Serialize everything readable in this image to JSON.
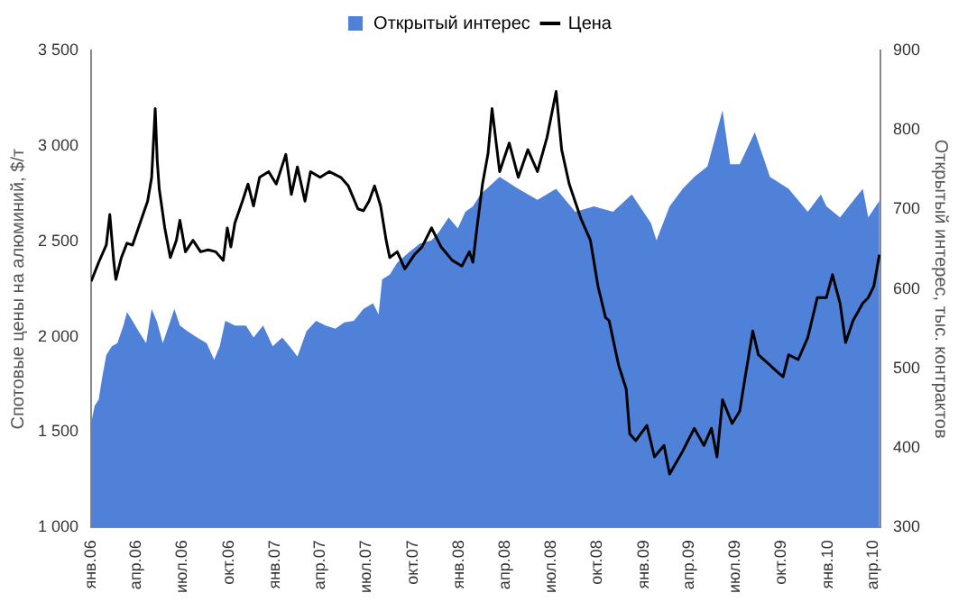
{
  "chart_data": {
    "type": "line",
    "ylabel": "Спотовые цены на алюминий, $/т",
    "y2label": "Открытый интерес, тыс. контрактов",
    "legend": "top",
    "grid": false,
    "marker": "none",
    "line_style": "solid",
    "xlim": [
      "2006-01-01",
      "2010-04-15"
    ],
    "xticks": [
      {
        "value": "2006-01-01",
        "label": "янв.06"
      },
      {
        "value": "2006-04-01",
        "label": "апр.06"
      },
      {
        "value": "2006-07-01",
        "label": "июл.06"
      },
      {
        "value": "2006-10-01",
        "label": "окт.06"
      },
      {
        "value": "2007-01-01",
        "label": "янв.07"
      },
      {
        "value": "2007-04-01",
        "label": "апр.07"
      },
      {
        "value": "2007-07-01",
        "label": "июл.07"
      },
      {
        "value": "2007-10-01",
        "label": "окт.07"
      },
      {
        "value": "2008-01-01",
        "label": "янв.08"
      },
      {
        "value": "2008-04-01",
        "label": "апр.08"
      },
      {
        "value": "2008-07-01",
        "label": "июл.08"
      },
      {
        "value": "2008-10-01",
        "label": "окт.08"
      },
      {
        "value": "2009-01-01",
        "label": "янв.09"
      },
      {
        "value": "2009-04-01",
        "label": "апр.09"
      },
      {
        "value": "2009-07-01",
        "label": "июл.09"
      },
      {
        "value": "2009-10-01",
        "label": "окт.09"
      },
      {
        "value": "2010-01-01",
        "label": "янв.10"
      },
      {
        "value": "2010-04-01",
        "label": "апр.10"
      }
    ],
    "ylim": [
      1000,
      3500
    ],
    "yticks": [
      {
        "value": 1000,
        "label": "1 000"
      },
      {
        "value": 1500,
        "label": "1 500"
      },
      {
        "value": 2000,
        "label": "2 000"
      },
      {
        "value": 2500,
        "label": "2 500"
      },
      {
        "value": 3000,
        "label": "3 000"
      },
      {
        "value": 3500,
        "label": "3 500"
      }
    ],
    "y2lim": [
      300,
      900
    ],
    "y2ticks": [
      300,
      400,
      500,
      600,
      700,
      800,
      900
    ],
    "series": [
      {
        "name": "Открытый интерес",
        "type": "area",
        "axis": "y2",
        "color": "#4f81d9",
        "x": [
          "2006-01-01",
          "2006-01-08",
          "2006-01-16",
          "2006-01-23",
          "2006-01-31",
          "2006-02-11",
          "2006-02-22",
          "2006-03-06",
          "2006-03-13",
          "2006-03-24",
          "2006-04-05",
          "2006-04-20",
          "2006-05-01",
          "2006-05-12",
          "2006-05-23",
          "2006-06-04",
          "2006-06-15",
          "2006-06-26",
          "2006-07-11",
          "2006-07-30",
          "2006-08-18",
          "2006-09-02",
          "2006-09-13",
          "2006-09-24",
          "2006-10-13",
          "2006-11-04",
          "2006-11-19",
          "2006-12-08",
          "2006-12-27",
          "2007-01-15",
          "2007-02-02",
          "2007-02-14",
          "2007-03-04",
          "2007-03-23",
          "2007-04-11",
          "2007-04-30",
          "2007-05-18",
          "2007-06-06",
          "2007-06-25",
          "2007-07-14",
          "2007-07-25",
          "2007-08-01",
          "2007-08-16",
          "2007-08-31",
          "2007-09-23",
          "2007-10-15",
          "2007-11-07",
          "2007-11-22",
          "2007-12-11",
          "2007-12-29",
          "2008-01-13",
          "2008-01-28",
          "2008-02-12",
          "2008-03-21",
          "2008-04-27",
          "2008-06-04",
          "2008-07-11",
          "2008-08-18",
          "2008-09-24",
          "2008-11-01",
          "2008-12-08",
          "2009-01-15",
          "2009-01-26",
          "2009-02-21",
          "2009-03-19",
          "2009-04-11",
          "2009-05-07",
          "2009-06-06",
          "2009-06-21",
          "2009-07-10",
          "2009-08-09",
          "2009-09-08",
          "2009-10-15",
          "2009-11-22",
          "2009-12-18",
          "2009-12-29",
          "2010-01-25",
          "2010-02-20",
          "2010-03-11",
          "2010-03-22",
          "2010-04-13"
        ],
        "values": [
          431,
          453,
          461,
          489,
          517,
          528,
          532,
          554,
          571,
          560,
          547,
          532,
          575,
          558,
          532,
          554,
          575,
          554,
          547,
          539,
          532,
          511,
          528,
          560,
          554,
          554,
          539,
          554,
          528,
          539,
          525,
          515,
          547,
          560,
          554,
          550,
          558,
          560,
          575,
          582,
          568,
          612,
          618,
          633,
          646,
          657,
          661,
          672,
          690,
          676,
          697,
          704,
          719,
          741,
          726,
          712,
          726,
          697,
          704,
          697,
          719,
          683,
          661,
          704,
          726,
          741,
          754,
          825,
          757,
          757,
          797,
          741,
          726,
          697,
          719,
          704,
          690,
          711,
          726,
          690,
          711
        ]
      },
      {
        "name": "Цена",
        "type": "line",
        "color": "#000000",
        "x": [
          "2006-01-01",
          "2006-01-16",
          "2006-01-31",
          "2006-02-07",
          "2006-02-15",
          "2006-02-19",
          "2006-03-02",
          "2006-03-13",
          "2006-03-24",
          "2006-04-08",
          "2006-04-23",
          "2006-05-01",
          "2006-05-08",
          "2006-05-12",
          "2006-05-16",
          "2006-05-27",
          "2006-06-07",
          "2006-06-19",
          "2006-06-26",
          "2006-07-07",
          "2006-07-22",
          "2006-08-06",
          "2006-08-21",
          "2006-09-05",
          "2006-09-20",
          "2006-09-28",
          "2006-10-05",
          "2006-10-13",
          "2006-10-28",
          "2006-11-08",
          "2006-11-19",
          "2006-12-01",
          "2006-12-19",
          "2007-01-03",
          "2007-01-22",
          "2007-02-02",
          "2007-02-14",
          "2007-03-01",
          "2007-03-12",
          "2007-03-31",
          "2007-04-18",
          "2007-05-11",
          "2007-05-26",
          "2007-06-14",
          "2007-06-25",
          "2007-07-06",
          "2007-07-17",
          "2007-07-29",
          "2007-08-09",
          "2007-08-16",
          "2007-08-31",
          "2007-09-15",
          "2007-10-04",
          "2007-10-19",
          "2007-11-07",
          "2007-11-26",
          "2007-12-18",
          "2008-01-06",
          "2008-01-21",
          "2008-01-28",
          "2008-02-05",
          "2008-02-16",
          "2008-02-27",
          "2008-03-06",
          "2008-03-21",
          "2008-04-09",
          "2008-04-27",
          "2008-05-16",
          "2008-06-04",
          "2008-06-23",
          "2008-07-11",
          "2008-07-22",
          "2008-08-06",
          "2008-08-29",
          "2008-09-17",
          "2008-10-02",
          "2008-10-17",
          "2008-10-24",
          "2008-11-12",
          "2008-11-27",
          "2008-12-04",
          "2008-12-16",
          "2009-01-03",
          "2009-01-07",
          "2009-01-22",
          "2009-02-10",
          "2009-02-21",
          "2009-03-19",
          "2009-04-11",
          "2009-04-30",
          "2009-05-15",
          "2009-05-26",
          "2009-06-06",
          "2009-06-25",
          "2009-07-10",
          "2009-07-21",
          "2009-08-05",
          "2009-08-16",
          "2009-09-04",
          "2009-09-23",
          "2009-10-04",
          "2009-10-15",
          "2009-11-03",
          "2009-11-22",
          "2009-12-11",
          "2009-12-29",
          "2010-01-10",
          "2010-01-25",
          "2010-02-05",
          "2010-02-20",
          "2010-03-11",
          "2010-03-22",
          "2010-04-02",
          "2010-04-13"
        ],
        "values": [
          2290,
          2390,
          2480,
          2640,
          2390,
          2300,
          2415,
          2490,
          2480,
          2595,
          2710,
          2835,
          3195,
          2925,
          2775,
          2570,
          2415,
          2505,
          2610,
          2445,
          2505,
          2445,
          2455,
          2445,
          2400,
          2570,
          2470,
          2595,
          2710,
          2800,
          2685,
          2835,
          2865,
          2800,
          2955,
          2745,
          2890,
          2710,
          2865,
          2835,
          2865,
          2835,
          2790,
          2670,
          2660,
          2710,
          2790,
          2685,
          2505,
          2415,
          2445,
          2355,
          2430,
          2470,
          2570,
          2470,
          2400,
          2370,
          2445,
          2390,
          2570,
          2800,
          2960,
          3195,
          2865,
          3015,
          2835,
          2980,
          2865,
          3045,
          3285,
          2980,
          2800,
          2620,
          2505,
          2265,
          2100,
          2085,
          1850,
          1725,
          1490,
          1455,
          1520,
          1535,
          1370,
          1430,
          1280,
          1400,
          1520,
          1430,
          1520,
          1370,
          1670,
          1545,
          1610,
          1790,
          2030,
          1905,
          1860,
          1815,
          1790,
          1905,
          1880,
          1995,
          2205,
          2205,
          2325,
          2175,
          1970,
          2085,
          2175,
          2205,
          2265,
          2430
        ]
      }
    ]
  }
}
